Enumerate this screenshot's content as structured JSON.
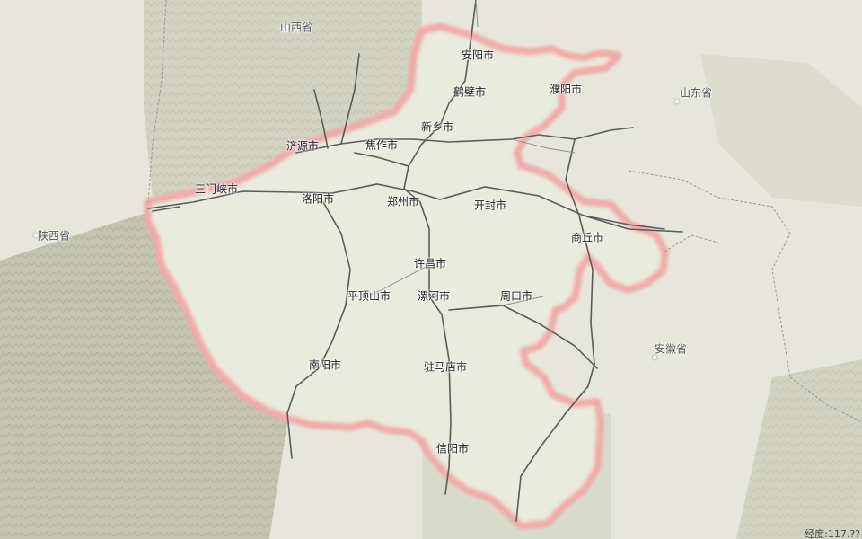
{
  "colors": {
    "background": "#e6e6da",
    "mountains": "#b7b9a3",
    "province_border": "#f0a0a0",
    "roads": "#555555",
    "province_fill": "#e9ecdc"
  },
  "provinces_outside": {
    "shanxi": "山西省",
    "shaanxi": "陕西省",
    "shandong": "山东省",
    "anhui": "安徽省"
  },
  "cities": {
    "anyang": "安阳市",
    "hebi": "鹤壁市",
    "puyang": "濮阳市",
    "xinxiang": "新乡市",
    "jiyuan": "济源市",
    "jiaozuo": "焦作市",
    "sanmenxia": "三门峡市",
    "luoyang": "洛阳市",
    "zhengzhou": "郑州市",
    "kaifeng": "开封市",
    "shangqiu": "商丘市",
    "xuchang": "许昌市",
    "pingdingshan": "平顶山市",
    "luohe": "漯河市",
    "zhoukou": "周口市",
    "nanyang": "南阳市",
    "zhumadian": "驻马店市",
    "xinyang": "信阳市"
  },
  "status": {
    "coordinate_readout": "经度:117.??"
  }
}
